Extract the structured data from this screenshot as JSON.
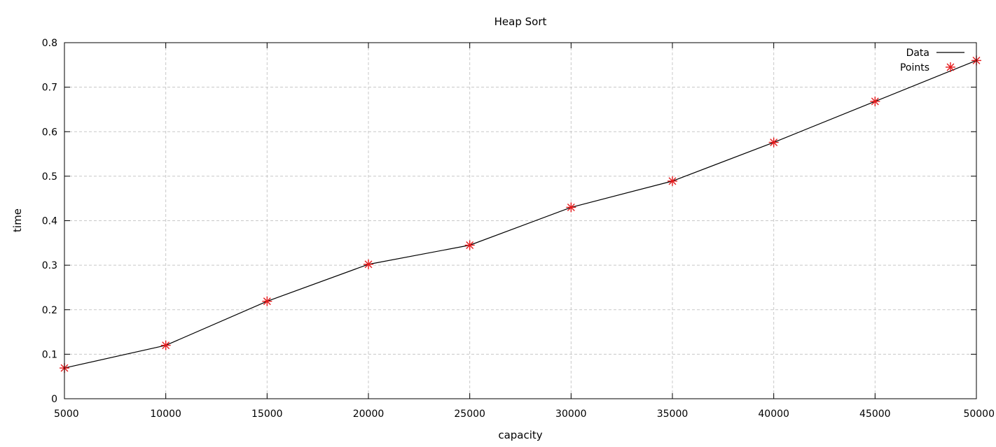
{
  "chart_data": {
    "type": "line",
    "title": "Heap Sort",
    "xlabel": "capacity",
    "ylabel": "time",
    "xlim": [
      5000,
      50000
    ],
    "ylim": [
      0,
      0.8
    ],
    "xticks": [
      5000,
      10000,
      15000,
      20000,
      25000,
      30000,
      35000,
      40000,
      45000,
      50000
    ],
    "yticks": [
      0,
      0.1,
      0.2,
      0.3,
      0.4,
      0.5,
      0.6,
      0.7,
      0.8
    ],
    "grid": true,
    "legend_position": "top-right",
    "series": [
      {
        "name": "Data",
        "style": "line",
        "color": "#000000",
        "x": [
          5000,
          10000,
          15000,
          20000,
          25000,
          30000,
          35000,
          40000,
          45000,
          50000
        ],
        "y": [
          0.069,
          0.12,
          0.219,
          0.302,
          0.345,
          0.43,
          0.489,
          0.576,
          0.668,
          0.76
        ]
      },
      {
        "name": "Points",
        "style": "points",
        "marker": "asterisk",
        "color": "#e41a1c",
        "x": [
          5000,
          10000,
          15000,
          20000,
          25000,
          30000,
          35000,
          40000,
          45000,
          50000
        ],
        "y": [
          0.069,
          0.12,
          0.219,
          0.302,
          0.345,
          0.43,
          0.489,
          0.576,
          0.668,
          0.76
        ]
      }
    ]
  }
}
